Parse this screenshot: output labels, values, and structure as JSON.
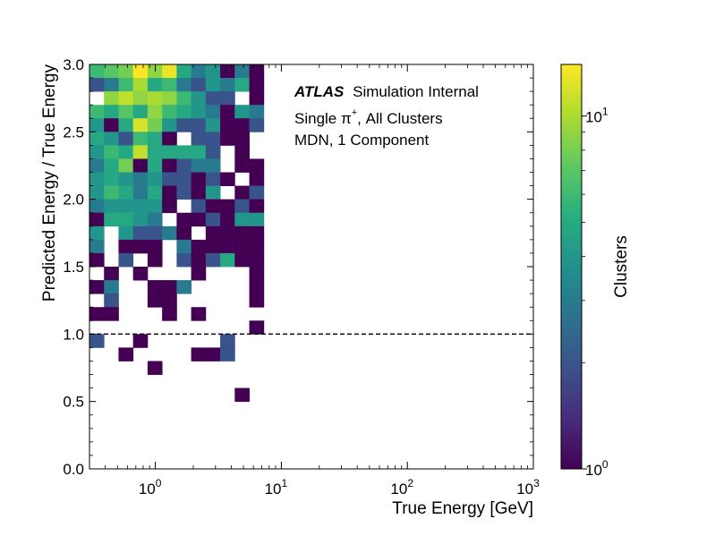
{
  "chart_data": {
    "type": "heatmap",
    "xlabel": "True Energy [GeV]",
    "ylabel": "Predicted Energy / True Energy",
    "colorbar_label": "Clusters",
    "x_scale": "log",
    "xlim": [
      0.3,
      1000
    ],
    "ylim": [
      0.0,
      3.0
    ],
    "z_scale": "log",
    "zlim": [
      1,
      14
    ],
    "colormap": "viridis",
    "x_ticks": [
      {
        "value": 1,
        "base": "10",
        "exp": "0"
      },
      {
        "value": 10,
        "base": "10",
        "exp": "1"
      },
      {
        "value": 100,
        "base": "10",
        "exp": "2"
      },
      {
        "value": 1000,
        "base": "10",
        "exp": "3"
      }
    ],
    "y_ticks": [
      "0.0",
      "0.5",
      "1.0",
      "1.5",
      "2.0",
      "2.5",
      "3.0"
    ],
    "colorbar_ticks": [
      {
        "value": 1,
        "base": "10",
        "exp": "0"
      },
      {
        "value": 10,
        "base": "10",
        "exp": "1"
      }
    ],
    "reference_line": {
      "y": 1.0,
      "style": "dashed"
    },
    "annotations": {
      "experiment": "ATLAS",
      "experiment_suffix": "Simulation Internal",
      "line2_prefix": "Single π",
      "line2_sup": "+",
      "line2_suffix": ", All Clusters",
      "line3": "MDN, 1 Component"
    },
    "bins": {
      "x_edges": [
        0.3,
        0.391,
        0.51,
        0.665,
        0.867,
        1.131,
        1.475,
        1.923,
        2.508,
        3.271,
        4.266,
        5.563,
        7.255
      ],
      "y_step": 0.1,
      "cells": [
        [
          0,
          29,
          6
        ],
        [
          1,
          29,
          7
        ],
        [
          2,
          29,
          8
        ],
        [
          3,
          29,
          14
        ],
        [
          4,
          29,
          9
        ],
        [
          5,
          29,
          13
        ],
        [
          6,
          29,
          5
        ],
        [
          7,
          29,
          3
        ],
        [
          8,
          29,
          4
        ],
        [
          9,
          29,
          1
        ],
        [
          10,
          29,
          3
        ],
        [
          11,
          29,
          1
        ],
        [
          12,
          29,
          5
        ],
        [
          0,
          28,
          2
        ],
        [
          1,
          28,
          3
        ],
        [
          2,
          28,
          6
        ],
        [
          3,
          28,
          10
        ],
        [
          4,
          28,
          5
        ],
        [
          5,
          28,
          6
        ],
        [
          6,
          28,
          3
        ],
        [
          7,
          28,
          2
        ],
        [
          8,
          28,
          4
        ],
        [
          9,
          28,
          3
        ],
        [
          10,
          28,
          5
        ],
        [
          11,
          28,
          1
        ],
        [
          12,
          28,
          1
        ],
        [
          1,
          27,
          9
        ],
        [
          2,
          27,
          11
        ],
        [
          3,
          27,
          9
        ],
        [
          4,
          27,
          10
        ],
        [
          5,
          27,
          9
        ],
        [
          6,
          27,
          6
        ],
        [
          7,
          27,
          4
        ],
        [
          8,
          27,
          2
        ],
        [
          9,
          27,
          2
        ],
        [
          11,
          27,
          1
        ],
        [
          12,
          27,
          2
        ],
        [
          0,
          26,
          6
        ],
        [
          1,
          26,
          5
        ],
        [
          2,
          26,
          7
        ],
        [
          3,
          26,
          5
        ],
        [
          4,
          26,
          9
        ],
        [
          5,
          26,
          6
        ],
        [
          6,
          26,
          5
        ],
        [
          7,
          26,
          4
        ],
        [
          8,
          26,
          3
        ],
        [
          9,
          26,
          1
        ],
        [
          10,
          26,
          4
        ],
        [
          11,
          26,
          3
        ],
        [
          12,
          26,
          4
        ],
        [
          0,
          25,
          4
        ],
        [
          1,
          25,
          1
        ],
        [
          2,
          25,
          5
        ],
        [
          3,
          25,
          12
        ],
        [
          4,
          25,
          8
        ],
        [
          5,
          25,
          4
        ],
        [
          6,
          25,
          2
        ],
        [
          7,
          25,
          2
        ],
        [
          8,
          25,
          4
        ],
        [
          9,
          25,
          1
        ],
        [
          10,
          25,
          1
        ],
        [
          11,
          25,
          2
        ],
        [
          12,
          25,
          1
        ],
        [
          0,
          24,
          5
        ],
        [
          1,
          24,
          4
        ],
        [
          2,
          24,
          2
        ],
        [
          3,
          24,
          6
        ],
        [
          4,
          24,
          5
        ],
        [
          5,
          24,
          1
        ],
        [
          7,
          24,
          2
        ],
        [
          8,
          24,
          2
        ],
        [
          9,
          24,
          1
        ],
        [
          10,
          24,
          1
        ],
        [
          0,
          23,
          4
        ],
        [
          1,
          23,
          6
        ],
        [
          2,
          23,
          5
        ],
        [
          3,
          23,
          11
        ],
        [
          4,
          23,
          5
        ],
        [
          5,
          23,
          5
        ],
        [
          6,
          23,
          5
        ],
        [
          7,
          23,
          5
        ],
        [
          8,
          23,
          2
        ],
        [
          10,
          23,
          1
        ],
        [
          0,
          22,
          3
        ],
        [
          1,
          22,
          5
        ],
        [
          2,
          22,
          8
        ],
        [
          3,
          22,
          1
        ],
        [
          4,
          22,
          5
        ],
        [
          5,
          22,
          1
        ],
        [
          6,
          22,
          2
        ],
        [
          7,
          22,
          3
        ],
        [
          8,
          22,
          3
        ],
        [
          10,
          22,
          1
        ],
        [
          11,
          22,
          1
        ],
        [
          0,
          21,
          4
        ],
        [
          1,
          21,
          5
        ],
        [
          2,
          21,
          4
        ],
        [
          3,
          21,
          3
        ],
        [
          4,
          21,
          4
        ],
        [
          5,
          21,
          2
        ],
        [
          6,
          21,
          2
        ],
        [
          7,
          21,
          1
        ],
        [
          8,
          21,
          2
        ],
        [
          9,
          21,
          1
        ],
        [
          11,
          21,
          1
        ],
        [
          12,
          21,
          1
        ],
        [
          0,
          20,
          4
        ],
        [
          1,
          20,
          6
        ],
        [
          2,
          20,
          5
        ],
        [
          3,
          20,
          3
        ],
        [
          4,
          20,
          5
        ],
        [
          5,
          20,
          1
        ],
        [
          6,
          20,
          2
        ],
        [
          7,
          20,
          1
        ],
        [
          8,
          20,
          4
        ],
        [
          10,
          20,
          1
        ],
        [
          11,
          20,
          2
        ],
        [
          12,
          20,
          2
        ],
        [
          0,
          19,
          3
        ],
        [
          1,
          19,
          4
        ],
        [
          2,
          19,
          4
        ],
        [
          3,
          19,
          4
        ],
        [
          4,
          19,
          4
        ],
        [
          5,
          19,
          1
        ],
        [
          7,
          19,
          2
        ],
        [
          8,
          19,
          1
        ],
        [
          9,
          19,
          1
        ],
        [
          10,
          19,
          2
        ],
        [
          11,
          19,
          1
        ],
        [
          0,
          18,
          1
        ],
        [
          1,
          18,
          5
        ],
        [
          2,
          18,
          5
        ],
        [
          3,
          18,
          4
        ],
        [
          4,
          18,
          3
        ],
        [
          6,
          18,
          1
        ],
        [
          7,
          18,
          1
        ],
        [
          8,
          18,
          2
        ],
        [
          9,
          18,
          1
        ],
        [
          10,
          18,
          4
        ],
        [
          11,
          18,
          4
        ],
        [
          12,
          18,
          4
        ],
        [
          0,
          17,
          4
        ],
        [
          2,
          17,
          4
        ],
        [
          3,
          17,
          2
        ],
        [
          4,
          17,
          2
        ],
        [
          5,
          17,
          3
        ],
        [
          6,
          17,
          1
        ],
        [
          8,
          17,
          1
        ],
        [
          9,
          17,
          1
        ],
        [
          10,
          17,
          1
        ],
        [
          11,
          17,
          1
        ],
        [
          0,
          16,
          3
        ],
        [
          2,
          16,
          1
        ],
        [
          3,
          16,
          1
        ],
        [
          4,
          16,
          1
        ],
        [
          6,
          16,
          3
        ],
        [
          7,
          16,
          1
        ],
        [
          8,
          16,
          1
        ],
        [
          9,
          16,
          1
        ],
        [
          10,
          16,
          1
        ],
        [
          11,
          16,
          1
        ],
        [
          12,
          16,
          1
        ],
        [
          0,
          15,
          1
        ],
        [
          2,
          15,
          2
        ],
        [
          4,
          15,
          1
        ],
        [
          6,
          15,
          2
        ],
        [
          7,
          15,
          1
        ],
        [
          8,
          15,
          2
        ],
        [
          9,
          15,
          5
        ],
        [
          10,
          15,
          1
        ],
        [
          11,
          15,
          1
        ],
        [
          12,
          15,
          3
        ],
        [
          1,
          14,
          1
        ],
        [
          3,
          14,
          1
        ],
        [
          7,
          14,
          1
        ],
        [
          11,
          14,
          1
        ],
        [
          12,
          14,
          1
        ],
        [
          0,
          13,
          1
        ],
        [
          1,
          13,
          3
        ],
        [
          4,
          13,
          1
        ],
        [
          5,
          13,
          1
        ],
        [
          6,
          13,
          3
        ],
        [
          11,
          13,
          1
        ],
        [
          12,
          13,
          1
        ],
        [
          1,
          12,
          2
        ],
        [
          4,
          12,
          1
        ],
        [
          5,
          12,
          1
        ],
        [
          11,
          12,
          1
        ],
        [
          12,
          12,
          1
        ],
        [
          0,
          11,
          1
        ],
        [
          1,
          11,
          1
        ],
        [
          5,
          11,
          1
        ],
        [
          7,
          11,
          1
        ],
        [
          11,
          10,
          1
        ],
        [
          12,
          10,
          1
        ],
        [
          0,
          9,
          2
        ],
        [
          3,
          9,
          1
        ],
        [
          9,
          9,
          2
        ],
        [
          2,
          8,
          1
        ],
        [
          7,
          8,
          1
        ],
        [
          8,
          8,
          1
        ],
        [
          9,
          8,
          2
        ],
        [
          12,
          8,
          1
        ],
        [
          4,
          7,
          1
        ],
        [
          12,
          7,
          1
        ],
        [
          10,
          5,
          1
        ]
      ]
    }
  }
}
